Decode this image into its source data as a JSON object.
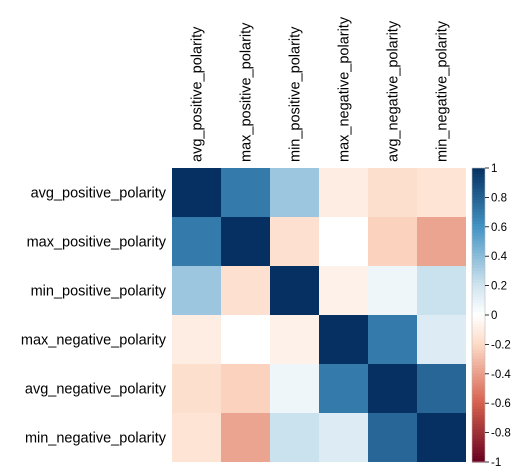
{
  "chart_data": {
    "type": "heatmap",
    "title": "",
    "row_labels": [
      "avg_positive_polarity",
      "max_positive_polarity",
      "min_positive_polarity",
      "max_negative_polarity",
      "avg_negative_polarity",
      "min_negative_polarity"
    ],
    "col_labels": [
      "avg_positive_polarity",
      "max_positive_polarity",
      "min_positive_polarity",
      "max_negative_polarity",
      "avg_negative_polarity",
      "min_negative_polarity"
    ],
    "values": [
      [
        1.0,
        0.7,
        0.35,
        -0.1,
        -0.18,
        -0.15
      ],
      [
        0.7,
        1.0,
        -0.17,
        0.0,
        -0.23,
        -0.38
      ],
      [
        0.35,
        -0.17,
        1.0,
        -0.08,
        0.07,
        0.22
      ],
      [
        -0.1,
        0.0,
        -0.08,
        1.0,
        0.7,
        0.15
      ],
      [
        -0.18,
        -0.23,
        0.07,
        0.7,
        1.0,
        0.78
      ],
      [
        -0.15,
        -0.38,
        0.22,
        0.15,
        0.78,
        1.0
      ]
    ],
    "colorbar": {
      "range": [
        -1,
        1
      ],
      "ticks": [
        "1",
        "0.8",
        "0.6",
        "0.4",
        "0.2",
        "0",
        "-0.2",
        "-0.4",
        "-0.6",
        "-0.8",
        "-1"
      ],
      "tick_values": [
        1,
        0.8,
        0.6,
        0.4,
        0.2,
        0,
        -0.2,
        -0.4,
        -0.6,
        -0.8,
        -1
      ],
      "color_stops": [
        {
          "v": -1.0,
          "c": "#67001f"
        },
        {
          "v": -0.6,
          "c": "#d6604d"
        },
        {
          "v": -0.2,
          "c": "#fddbc7"
        },
        {
          "v": 0.0,
          "c": "#ffffff"
        },
        {
          "v": 0.2,
          "c": "#d1e5f0"
        },
        {
          "v": 0.6,
          "c": "#4393c3"
        },
        {
          "v": 1.0,
          "c": "#053061"
        }
      ]
    }
  }
}
